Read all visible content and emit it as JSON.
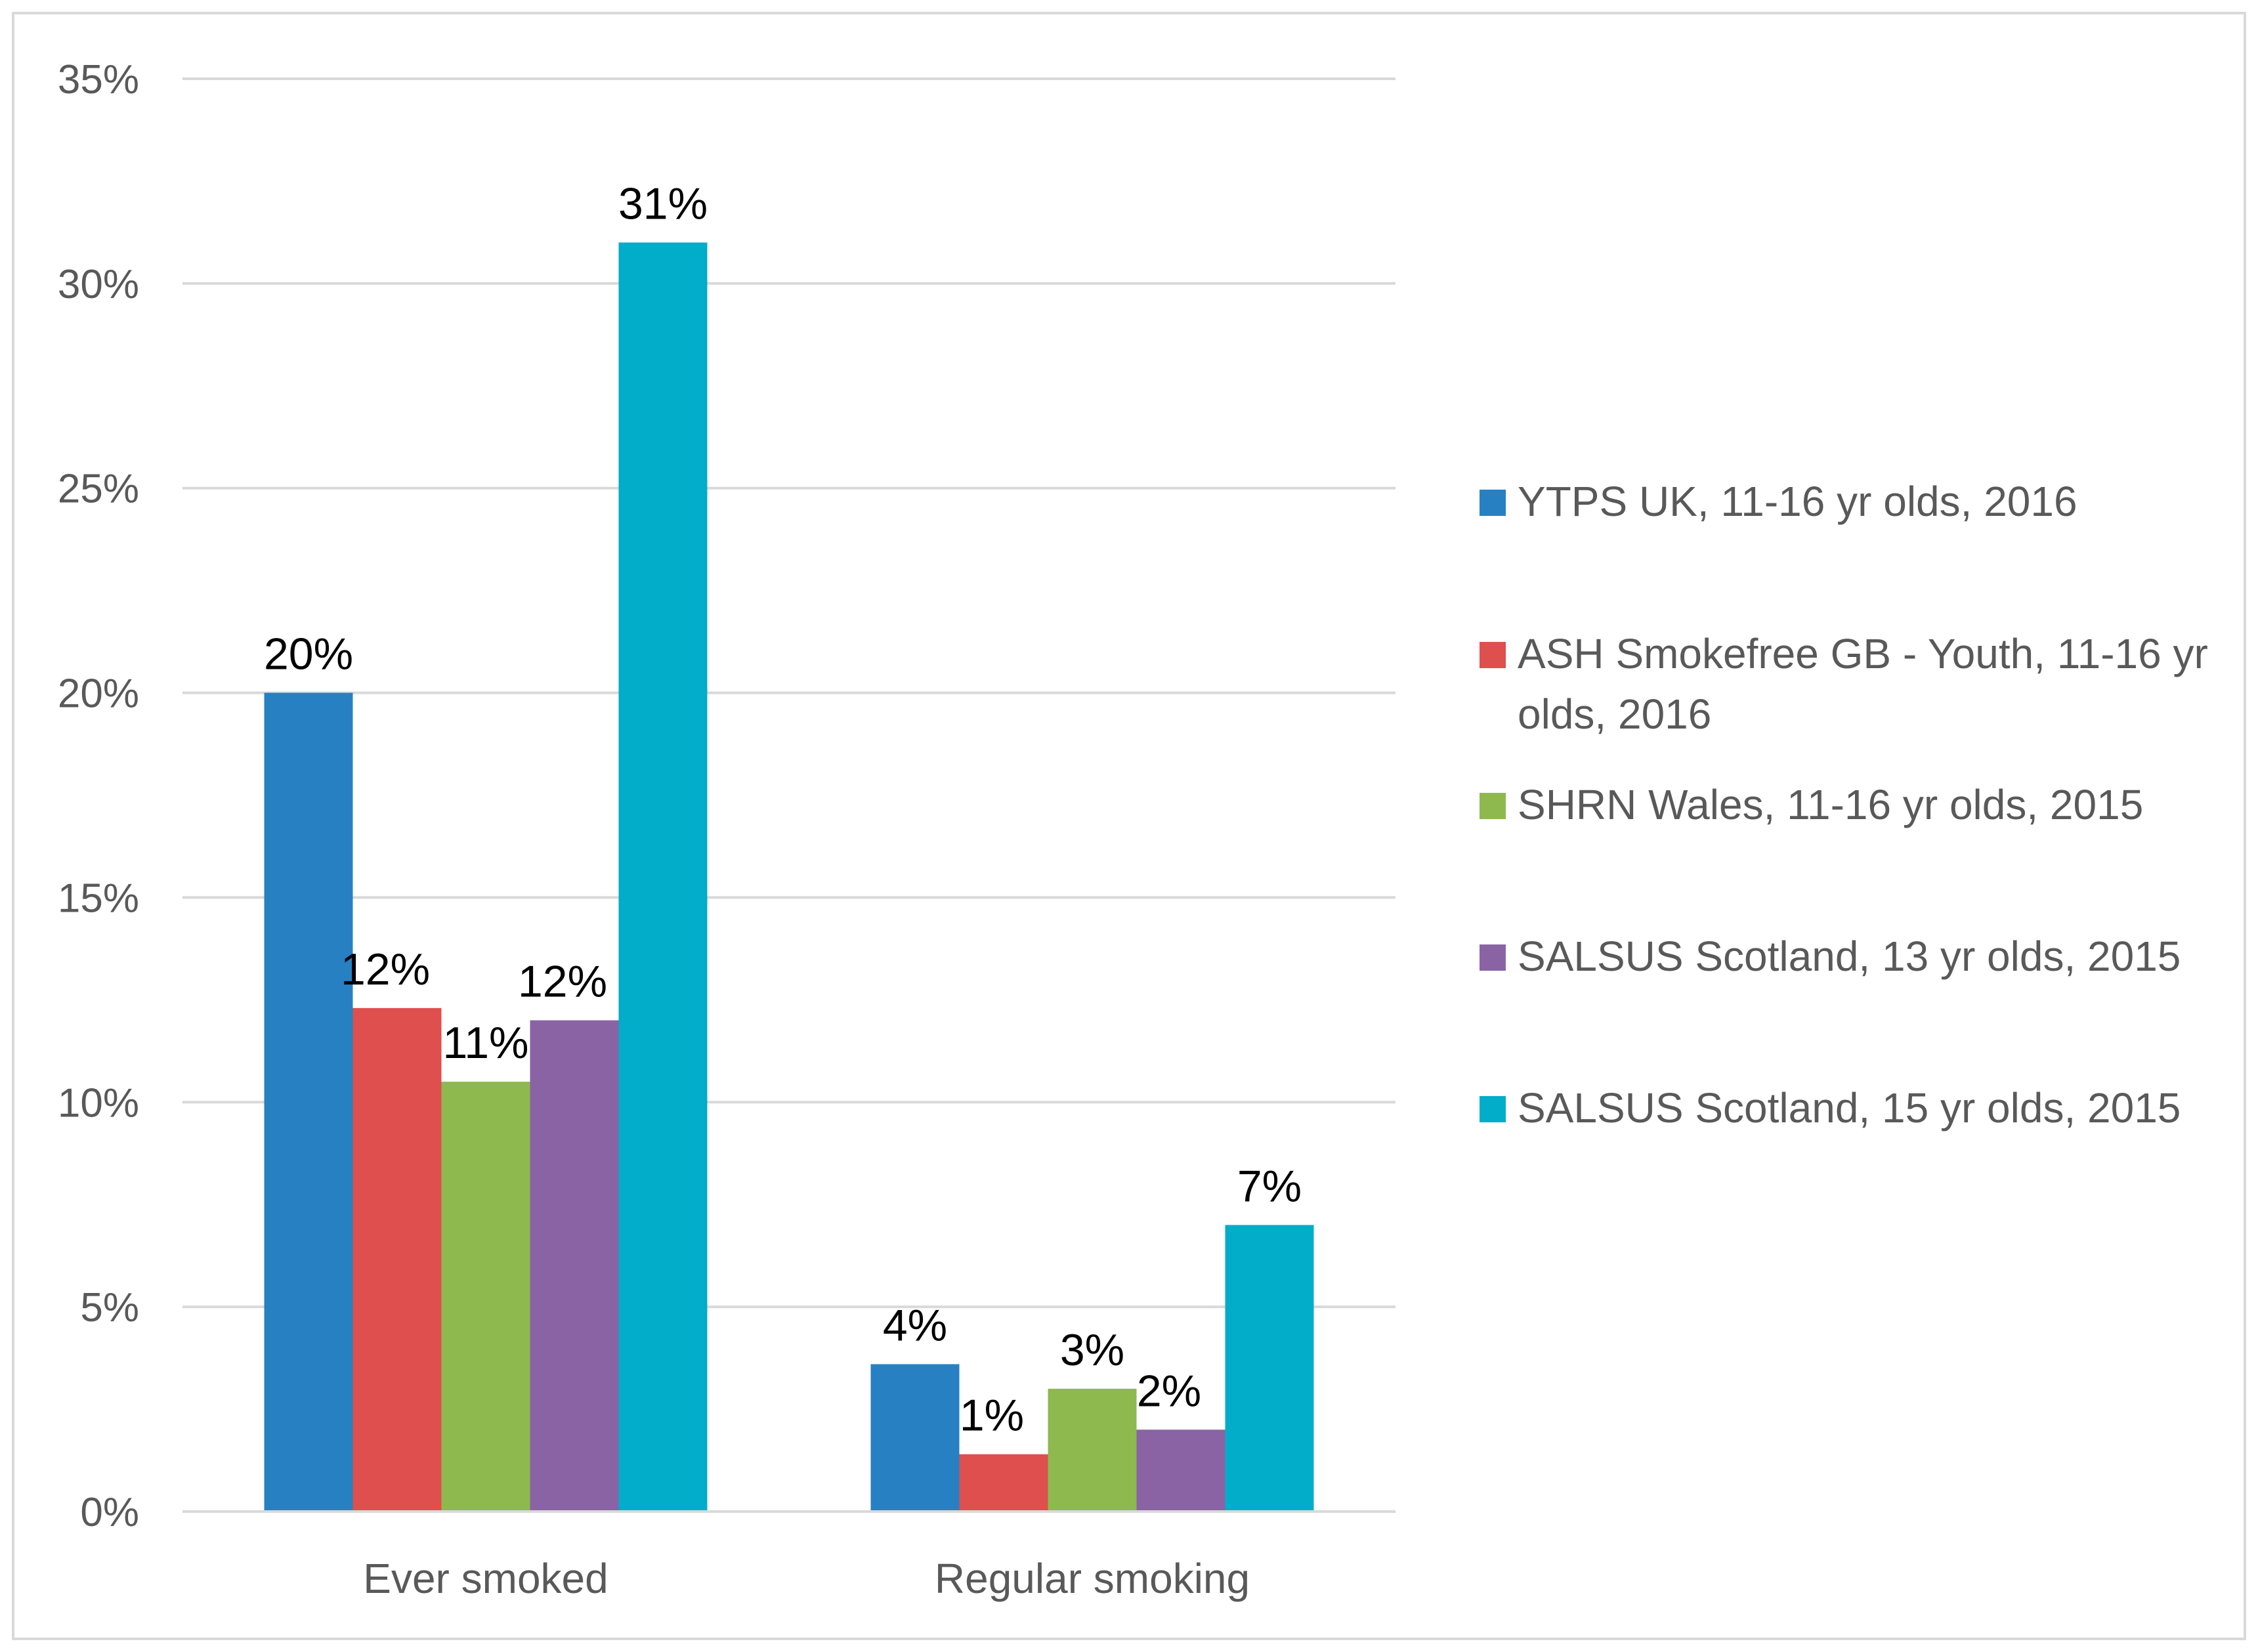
{
  "chart_data": {
    "type": "bar",
    "title": "",
    "xlabel": "",
    "ylabel": "",
    "ylim": [
      0,
      35
    ],
    "yticks": [
      0,
      5,
      10,
      15,
      20,
      25,
      30,
      35
    ],
    "ytick_labels": [
      "0%",
      "5%",
      "10%",
      "15%",
      "20%",
      "25%",
      "30%",
      "35%"
    ],
    "grid": true,
    "legend_position": "right",
    "categories": [
      "Ever smoked",
      "Regular smoking"
    ],
    "series": [
      {
        "name": "YTPS UK, 11-16 yr olds, 2016",
        "color": "#2780c2",
        "values": [
          20,
          3.6
        ],
        "labels": [
          "20%",
          "4%"
        ]
      },
      {
        "name": "ASH Smokefree GB - Youth, 11-16 yr olds, 2016",
        "color": "#de4f4e",
        "values": [
          12.3,
          1.4
        ],
        "labels": [
          "12%",
          "1%"
        ]
      },
      {
        "name": "SHRN Wales, 11-16 yr olds, 2015",
        "color": "#8db94f",
        "values": [
          10.5,
          3.0
        ],
        "labels": [
          "11%",
          "3%"
        ]
      },
      {
        "name": "SALSUS Scotland, 13 yr olds, 2015",
        "color": "#8a63a5",
        "values": [
          12.0,
          2.0
        ],
        "labels": [
          "12%",
          "2%"
        ]
      },
      {
        "name": "SALSUS Scotland, 15 yr olds, 2015",
        "color": "#01adc8",
        "values": [
          31.0,
          7.0
        ],
        "labels": [
          "31%",
          "7%"
        ]
      }
    ]
  }
}
